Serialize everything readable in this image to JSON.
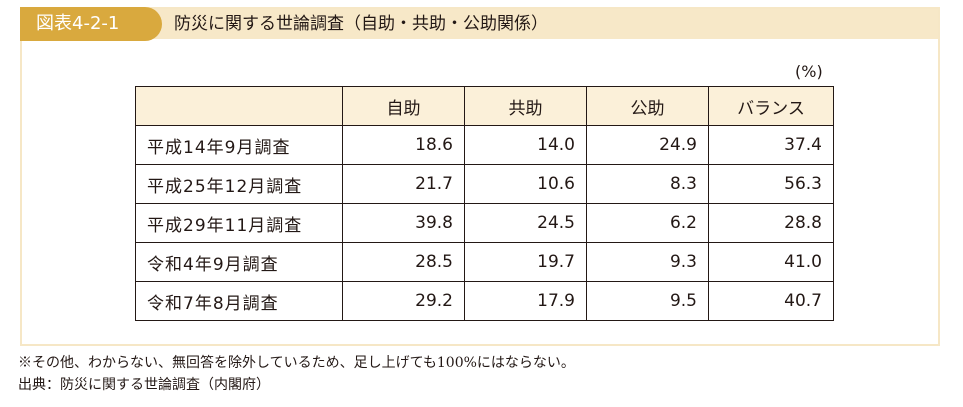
{
  "figure": {
    "label": "図表4-2-1",
    "title": "防災に関する世論調査（自助・共助・公助関係）",
    "unit": "(%)"
  },
  "table": {
    "columns": [
      "自助",
      "共助",
      "公助",
      "バランス"
    ],
    "rows": [
      {
        "label": "平成14年9月調査",
        "values": [
          "18.6",
          "14.0",
          "24.9",
          "37.4"
        ]
      },
      {
        "label": "平成25年12月調査",
        "values": [
          "21.7",
          "10.6",
          "8.3",
          "56.3"
        ]
      },
      {
        "label": "平成29年11月調査",
        "values": [
          "39.8",
          "24.5",
          "6.2",
          "28.8"
        ]
      },
      {
        "label": "令和4年9月調査",
        "values": [
          "28.5",
          "19.7",
          "9.3",
          "41.0"
        ]
      },
      {
        "label": "令和7年8月調査",
        "values": [
          "29.2",
          "17.9",
          "9.5",
          "40.7"
        ]
      }
    ]
  },
  "notes": {
    "footnote": "※その他、わからない、無回答を除外しているため、足し上げても100%にはならない。",
    "source": "出典：防災に関する世論調査（内閣府）"
  },
  "colors": {
    "label_bg": "#d9a93e",
    "header_bar": "#f7e8c8",
    "table_header_bg": "#fbf0d9"
  }
}
